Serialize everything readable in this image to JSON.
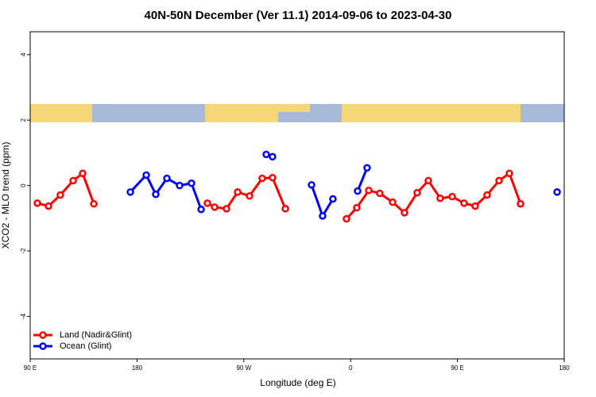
{
  "chart_data": {
    "type": "line",
    "title": "40N-50N December (Ver 11.1)   2014-09-06 to 2023-04-30",
    "x_label": "Longitude (deg E)",
    "y_label": "XCO2 - MLO trend (ppm)",
    "xlim": [
      90,
      540
    ],
    "xticks": [
      {
        "value": 90,
        "label": "90 E"
      },
      180,
      {
        "value": 270,
        "label": "90 W"
      },
      {
        "value": 360,
        "label": "0"
      },
      {
        "value": 450,
        "label": "90 E"
      },
      {
        "value": 540,
        "label": "180"
      }
    ],
    "ylim": [
      -5.3,
      4.7
    ],
    "yticks": [
      -4,
      -2,
      0,
      2,
      4
    ],
    "legend_position": "bottom-left",
    "series": [
      {
        "name": "Land (Nadir&Glint)",
        "color": "#ff0000",
        "x": [
          96,
          105.4,
          115.4,
          126.2,
          134.2,
          143.6,
          null,
          239.3,
          245.4,
          255.4,
          264.8,
          274.8,
          285.5,
          294.2,
          305,
          null,
          356.5,
          365.2,
          375.3,
          384.6,
          395.4,
          405.4,
          416.1,
          425.5,
          435.5,
          445.6,
          455.6,
          465,
          475,
          485.1,
          493.8,
          503.2
        ],
        "values": [
          -0.54,
          -0.63,
          -0.29,
          0.15,
          0.37,
          -0.56,
          null,
          -0.54,
          -0.66,
          -0.71,
          -0.2,
          -0.32,
          0.22,
          0.24,
          -0.71,
          null,
          -1.02,
          -0.68,
          -0.15,
          -0.24,
          -0.51,
          -0.83,
          -0.22,
          0.15,
          -0.39,
          -0.34,
          -0.54,
          -0.63,
          -0.29,
          0.15,
          0.37,
          -0.56
        ]
      },
      {
        "name": "Ocean (Glint)",
        "color": "#0000ff",
        "x": [
          174.4,
          187.8,
          195.8,
          205.2,
          215.9,
          225.9,
          234,
          null,
          288.9,
          294.2,
          null,
          327.1,
          336.4,
          345.1,
          null,
          365.9,
          373.9,
          null,
          534
        ],
        "values": [
          -0.2,
          0.32,
          -0.27,
          0.22,
          0,
          0.07,
          -0.73,
          null,
          0.95,
          0.88,
          null,
          0.02,
          -0.93,
          -0.41,
          null,
          -0.17,
          0.54,
          null,
          -0.2
        ]
      }
    ]
  }
}
